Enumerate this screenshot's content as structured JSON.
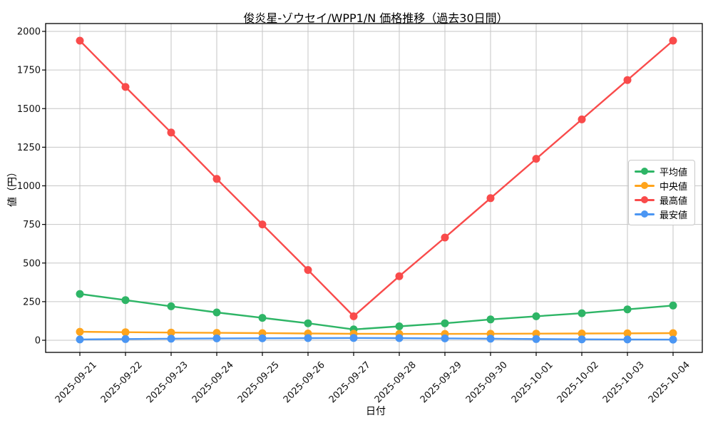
{
  "chart_data": {
    "type": "line",
    "title": "俊炎星-ゾウセイ/WPP1/N 価格推移（過去30日間）",
    "xlabel": "日付",
    "ylabel": "値（円）",
    "grid": true,
    "legend_position": "center right",
    "x": [
      "2025-09-21",
      "2025-09-22",
      "2025-09-23",
      "2025-09-24",
      "2025-09-25",
      "2025-09-26",
      "2025-09-27",
      "2025-09-28",
      "2025-09-29",
      "2025-09-30",
      "2025-10-01",
      "2025-10-02",
      "2025-10-03",
      "2025-10-04"
    ],
    "yticks": [
      0,
      250,
      500,
      750,
      1000,
      1250,
      1500,
      1750,
      2000
    ],
    "ylim": [
      -95,
      2040
    ],
    "series": [
      {
        "name": "平均値",
        "color": "#2eb566",
        "values": [
          300,
          260,
          220,
          180,
          145,
          110,
          70,
          90,
          110,
          135,
          155,
          175,
          200,
          225
        ]
      },
      {
        "name": "中央値",
        "color": "#ffa41c",
        "values": [
          55,
          52,
          50,
          48,
          46,
          44,
          42,
          41,
          41,
          42,
          43,
          44,
          45,
          46
        ]
      },
      {
        "name": "最高値",
        "color": "#f94b4b",
        "values": [
          1940,
          1640,
          1345,
          1045,
          750,
          455,
          155,
          415,
          665,
          920,
          1175,
          1430,
          1685,
          1940
        ]
      },
      {
        "name": "最安値",
        "color": "#4b96f3",
        "values": [
          5,
          8,
          10,
          12,
          13,
          14,
          15,
          14,
          12,
          10,
          8,
          6,
          5,
          4
        ]
      }
    ],
    "grid_color": "#c6c6c6",
    "spine_color": "#000000"
  }
}
